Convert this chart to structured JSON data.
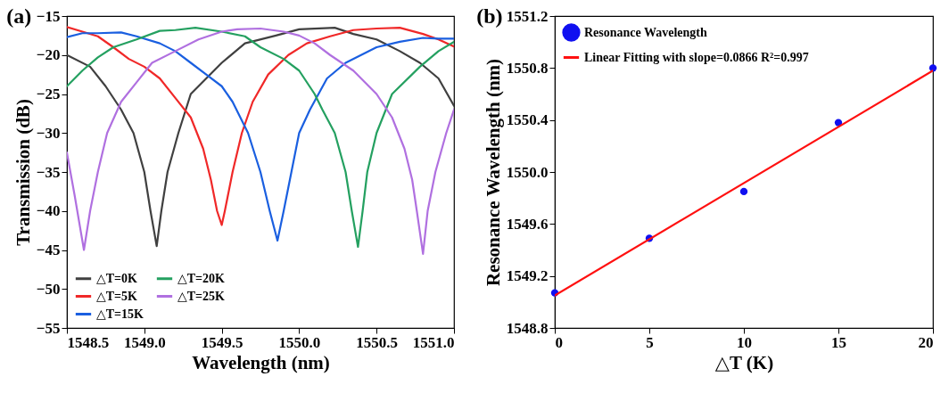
{
  "chart_data": [
    {
      "type": "line",
      "title": "(a)",
      "xlabel": "Wavelength (nm)",
      "ylabel": "Transmission (dB)",
      "xlim": [
        1548.5,
        1551.0
      ],
      "ylim": [
        -55,
        -15
      ],
      "xticks": [
        1548.5,
        {
          "value": 1549,
          "label": "1549.0"
        },
        1549.5,
        {
          "value": 1550,
          "label": "1550.0"
        },
        1550.5,
        {
          "value": 1551,
          "label": "1551.0"
        }
      ],
      "yticks": [
        -55,
        -50,
        -45,
        -40,
        -35,
        -30,
        -25,
        -20,
        -15
      ],
      "legend": "bottom left",
      "series": [
        {
          "name": "△T=0K",
          "color": "#404040",
          "x": [
            1548.5,
            1548.65,
            1548.75,
            1548.85,
            1548.93,
            1549.0,
            1549.04,
            1549.08,
            1549.11,
            1549.15,
            1549.22,
            1549.3,
            1549.5,
            1549.65,
            1549.85,
            1550.0,
            1550.23,
            1550.35,
            1550.5,
            1550.65,
            1550.78,
            1550.9,
            1551.0
          ],
          "values": [
            -20,
            -21.5,
            -24,
            -27,
            -30,
            -35,
            -40,
            -44.5,
            -40,
            -35,
            -30,
            -25,
            -21,
            -18.5,
            -17.5,
            -16.7,
            -16.5,
            -17.3,
            -18,
            -19.5,
            -21,
            -23,
            -26.5
          ]
        },
        {
          "name": "△T=5K",
          "color": "#f02828",
          "x": [
            1548.5,
            1548.6,
            1548.7,
            1548.8,
            1548.9,
            1549.0,
            1549.1,
            1549.2,
            1549.3,
            1549.38,
            1549.43,
            1549.47,
            1549.5,
            1549.52,
            1549.57,
            1549.63,
            1549.7,
            1549.8,
            1549.93,
            1550.05,
            1550.2,
            1550.35,
            1550.5,
            1550.65,
            1550.8,
            1550.9,
            1551.0
          ],
          "values": [
            -16.4,
            -17,
            -17.6,
            -19,
            -20.5,
            -21.5,
            -23,
            -25.5,
            -28,
            -32,
            -36,
            -40,
            -41.8,
            -40,
            -35,
            -30,
            -26,
            -22.5,
            -20,
            -18.5,
            -17.6,
            -16.8,
            -16.6,
            -16.5,
            -17.3,
            -18,
            -18.9
          ]
        },
        {
          "name": "△T=15K",
          "color": "#1a5fe0",
          "x": [
            1548.5,
            1548.6,
            1548.7,
            1548.85,
            1548.95,
            1549.1,
            1549.2,
            1549.3,
            1549.4,
            1549.5,
            1549.57,
            1549.62,
            1549.67,
            1549.75,
            1549.81,
            1549.86,
            1549.9,
            1549.95,
            1550.0,
            1550.07,
            1550.18,
            1550.3,
            1550.5,
            1550.65,
            1550.8,
            1550.9,
            1551.0
          ],
          "values": [
            -17.7,
            -17.2,
            -17.2,
            -17.1,
            -17.6,
            -18.5,
            -19.5,
            -21,
            -22.5,
            -24,
            -26,
            -28,
            -30,
            -35,
            -40,
            -43.8,
            -40,
            -35,
            -30,
            -27,
            -23,
            -21,
            -19,
            -18.3,
            -17.8,
            -17.9,
            -17.9
          ]
        },
        {
          "name": "△T=20K",
          "color": "#24a060",
          "x": [
            1548.5,
            1548.6,
            1548.7,
            1548.8,
            1548.95,
            1549.1,
            1549.2,
            1549.33,
            1549.5,
            1549.65,
            1549.75,
            1549.9,
            1550.0,
            1550.1,
            1550.15,
            1550.23,
            1550.3,
            1550.34,
            1550.38,
            1550.41,
            1550.44,
            1550.5,
            1550.6,
            1550.78,
            1550.9,
            1551.0
          ],
          "values": [
            -24,
            -22,
            -20.3,
            -19,
            -18,
            -16.9,
            -16.8,
            -16.5,
            -17,
            -17.6,
            -19,
            -20.5,
            -22,
            -25,
            -27,
            -30,
            -35,
            -40,
            -44.6,
            -40,
            -35,
            -30,
            -25,
            -21.5,
            -19.5,
            -18.3
          ]
        },
        {
          "name": "△T=25K",
          "color": "#b070e0",
          "x": [
            1548.5,
            1548.55,
            1548.61,
            1548.65,
            1548.7,
            1548.76,
            1548.85,
            1548.95,
            1549.05,
            1549.2,
            1549.35,
            1549.5,
            1549.6,
            1549.75,
            1549.9,
            1550.0,
            1550.1,
            1550.2,
            1550.35,
            1550.5,
            1550.6,
            1550.68,
            1550.73,
            1550.76,
            1550.8,
            1550.83,
            1550.88,
            1550.95,
            1551.0
          ],
          "values": [
            -32.5,
            -38,
            -45,
            -40,
            -35,
            -30,
            -26,
            -23.5,
            -21,
            -19.5,
            -18,
            -17,
            -16.7,
            -16.6,
            -17,
            -17.5,
            -18.5,
            -20,
            -22,
            -25,
            -28,
            -32,
            -36,
            -40,
            -45.5,
            -40,
            -35,
            -30,
            -27
          ]
        }
      ]
    },
    {
      "type": "scatter",
      "title": "(b)",
      "xlabel": "△T (K)",
      "ylabel": "Resonance Wavelength (nm)",
      "xlim": [
        0,
        20
      ],
      "ylim": [
        1548.8,
        1551.2
      ],
      "xticks": [
        0,
        5,
        10,
        15,
        20
      ],
      "yticks": [
        1548.8,
        1549.2,
        1549.6,
        {
          "value": 1550,
          "label": "1550.0"
        },
        1550.4,
        1550.8,
        1551.2
      ],
      "legend": "top left",
      "series": [
        {
          "name": "Resonance Wavelength",
          "marker": "circle",
          "color": "#1010f0",
          "x": [
            0,
            5,
            10,
            15,
            20
          ],
          "values": [
            1549.07,
            1549.49,
            1549.85,
            1550.38,
            1550.8
          ]
        },
        {
          "name": "Linear Fitting with slope=0.0866 R²=0.997",
          "type": "line",
          "color": "#ff1010",
          "x": [
            0,
            20
          ],
          "values": [
            1549.05,
            1550.78
          ]
        }
      ]
    }
  ]
}
